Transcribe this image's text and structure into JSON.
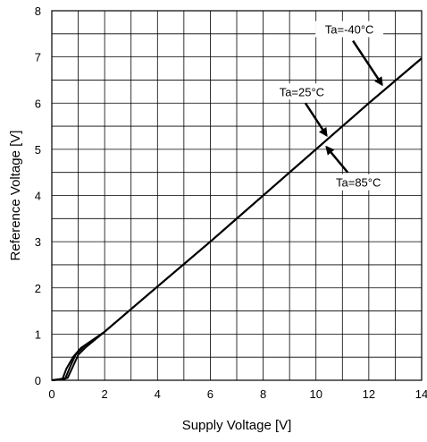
{
  "chart_data": {
    "type": "line",
    "title": "",
    "xlabel": "Supply Voltage [V]",
    "ylabel": "Reference Voltage [V]",
    "xlim": [
      0,
      14
    ],
    "ylim": [
      0,
      8
    ],
    "x_ticks": [
      0,
      2,
      4,
      6,
      8,
      10,
      12,
      14
    ],
    "y_ticks": [
      0,
      1,
      2,
      3,
      4,
      5,
      6,
      7,
      8
    ],
    "x_tick_labels": [
      "0",
      "2",
      "4",
      "6",
      "8",
      "10",
      "12",
      "14"
    ],
    "y_tick_labels": [
      "0",
      "1",
      "2",
      "3",
      "4",
      "5",
      "6",
      "7",
      "8"
    ],
    "grid": true,
    "grid_minor": true,
    "series": [
      {
        "x": [
          0,
          0.6,
          0.8,
          1.0,
          1.3,
          2,
          4,
          6,
          8,
          10,
          12,
          14
        ],
        "y": [
          0,
          0.05,
          0.3,
          0.55,
          0.72,
          1.05,
          2.03,
          3.0,
          4.0,
          5.0,
          6.0,
          6.97
        ]
      },
      {
        "x": [
          0,
          0.5,
          0.7,
          0.9,
          1.2,
          2,
          4,
          6,
          8,
          10,
          12,
          14
        ],
        "y": [
          0,
          0.03,
          0.3,
          0.55,
          0.72,
          1.05,
          2.03,
          3.0,
          4.0,
          5.0,
          6.0,
          6.97
        ]
      },
      {
        "x": [
          0,
          0.4,
          0.55,
          0.8,
          1.1,
          2,
          4,
          6,
          8,
          10,
          12,
          14
        ],
        "y": [
          0,
          0.02,
          0.25,
          0.5,
          0.7,
          1.05,
          2.03,
          3.0,
          4.0,
          5.0,
          6.0,
          6.97
        ]
      }
    ],
    "annotations": [
      {
        "text": "Ta=-40°C",
        "from": [
          11.4,
          7.35
        ],
        "to": [
          12.5,
          6.4
        ]
      },
      {
        "text": "Ta=25°C",
        "from": [
          9.6,
          6.0
        ],
        "to": [
          10.4,
          5.3
        ]
      },
      {
        "text": "Ta=85°C",
        "from": [
          11.2,
          4.5
        ],
        "to": [
          10.4,
          5.05
        ]
      }
    ]
  },
  "colors": {
    "line": "#000000",
    "grid": "#000000",
    "background": "#ffffff"
  }
}
